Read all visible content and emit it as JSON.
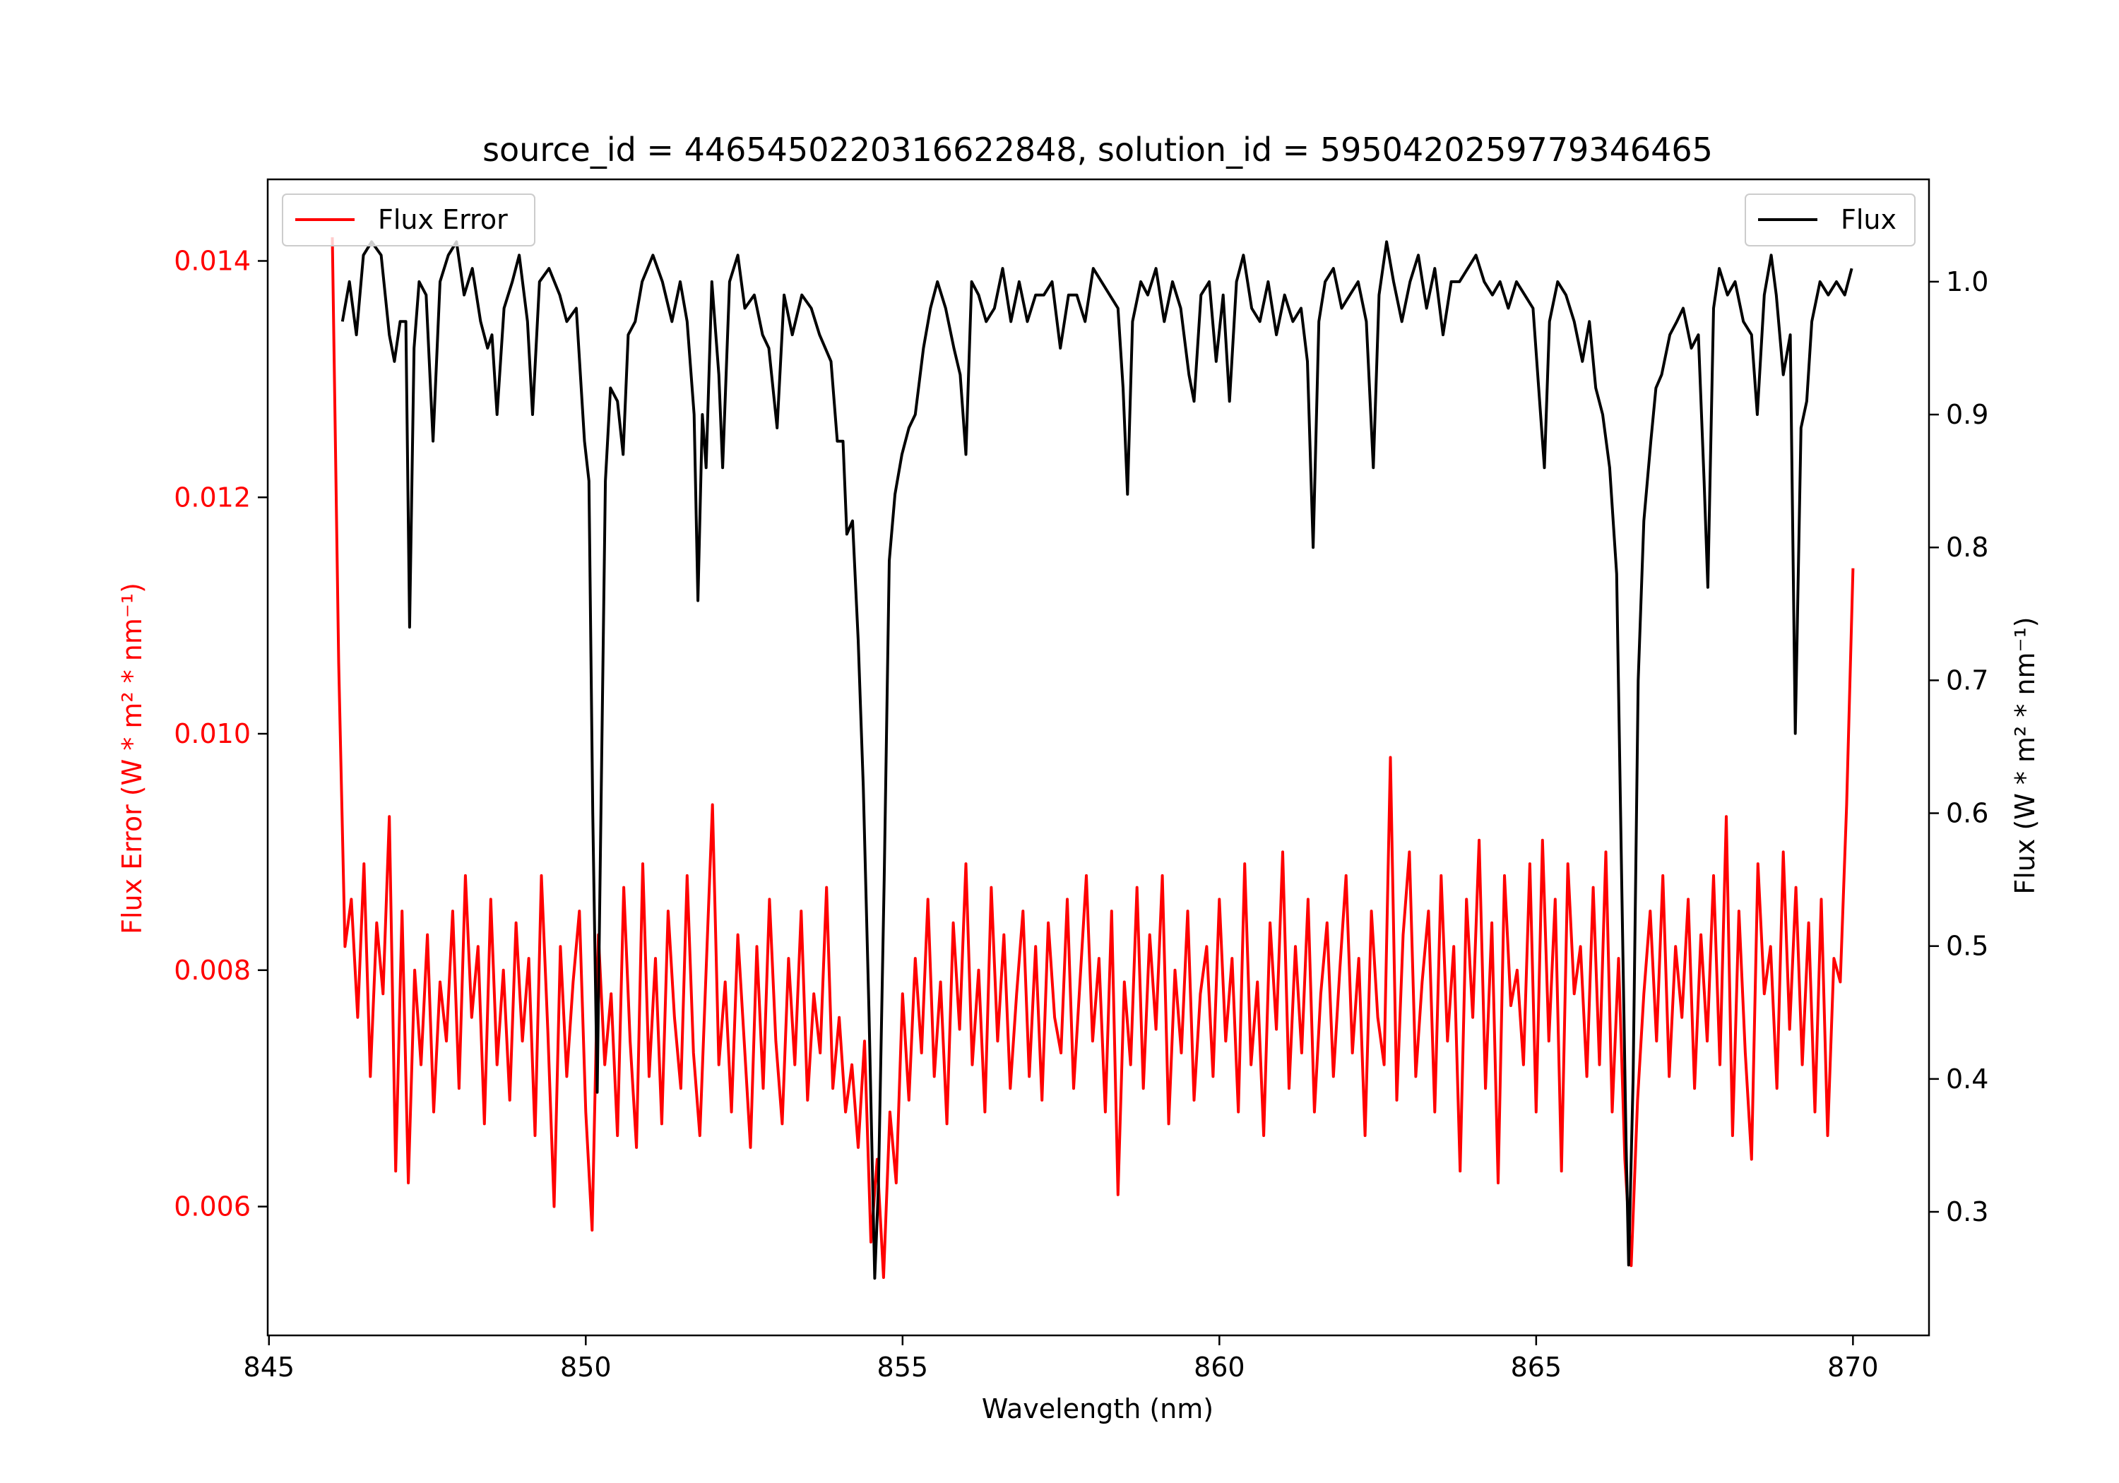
{
  "chart_data": {
    "type": "line",
    "title": "source_id = 4465450220316622848, solution_id = 5950420259779346465",
    "xlabel": "Wavelength (nm)",
    "ylabel_left": "Flux Error (W * m² * nm⁻¹)",
    "ylabel_right": "Flux (W * m² * nm⁻¹)",
    "xlim": [
      844.98,
      871.2
    ],
    "ylim_left": [
      0.00491,
      0.01469
    ],
    "ylim_right": [
      0.207,
      1.077
    ],
    "xticks": [
      845,
      850,
      855,
      860,
      865,
      870
    ],
    "xtick_labels": [
      "845",
      "850",
      "855",
      "860",
      "865",
      "870"
    ],
    "yticks_left": [
      0.006,
      0.008,
      0.01,
      0.012,
      0.014
    ],
    "ytick_labels_left": [
      "0.006",
      "0.008",
      "0.010",
      "0.012",
      "0.014"
    ],
    "yticks_right": [
      0.3,
      0.4,
      0.5,
      0.6,
      0.7,
      0.8,
      0.9,
      1.0
    ],
    "ytick_labels_right": [
      "0.3",
      "0.4",
      "0.5",
      "0.6",
      "0.7",
      "0.8",
      "0.9",
      "1.0"
    ],
    "grid": false,
    "left_axis_color": "#ff0000",
    "series": [
      {
        "name": "Flux Error",
        "axis": "left",
        "color": "#ff0000",
        "legend_position": "top-left",
        "x_start": 846.0,
        "x_step": 0.1,
        "values": [
          0.0142,
          0.0106,
          0.0082,
          0.0086,
          0.0076,
          0.0089,
          0.0071,
          0.0084,
          0.0078,
          0.0093,
          0.0063,
          0.0085,
          0.0062,
          0.008,
          0.0072,
          0.0083,
          0.0068,
          0.0079,
          0.0074,
          0.0085,
          0.007,
          0.0088,
          0.0076,
          0.0082,
          0.0067,
          0.0086,
          0.0072,
          0.008,
          0.0069,
          0.0084,
          0.0074,
          0.0081,
          0.0066,
          0.0088,
          0.0075,
          0.006,
          0.0082,
          0.0071,
          0.0079,
          0.0085,
          0.0068,
          0.0058,
          0.0083,
          0.0072,
          0.0078,
          0.0066,
          0.0087,
          0.0074,
          0.0065,
          0.0089,
          0.0071,
          0.0081,
          0.0067,
          0.0085,
          0.0076,
          0.007,
          0.0088,
          0.0073,
          0.0066,
          0.008,
          0.0094,
          0.0072,
          0.0079,
          0.0068,
          0.0083,
          0.0074,
          0.0065,
          0.0082,
          0.007,
          0.0086,
          0.0074,
          0.0067,
          0.0081,
          0.0072,
          0.0085,
          0.0069,
          0.0078,
          0.0073,
          0.0087,
          0.007,
          0.0076,
          0.0068,
          0.0072,
          0.0065,
          0.0074,
          0.0057,
          0.0064,
          0.0054,
          0.0068,
          0.0062,
          0.0078,
          0.0069,
          0.0081,
          0.0073,
          0.0086,
          0.0071,
          0.0079,
          0.0067,
          0.0084,
          0.0075,
          0.0089,
          0.0072,
          0.008,
          0.0068,
          0.0087,
          0.0074,
          0.0083,
          0.007,
          0.0078,
          0.0085,
          0.0071,
          0.0082,
          0.0069,
          0.0084,
          0.0076,
          0.0073,
          0.0086,
          0.007,
          0.0079,
          0.0088,
          0.0074,
          0.0081,
          0.0068,
          0.0085,
          0.0061,
          0.0079,
          0.0072,
          0.0087,
          0.007,
          0.0083,
          0.0075,
          0.0088,
          0.0067,
          0.008,
          0.0073,
          0.0085,
          0.0069,
          0.0078,
          0.0082,
          0.0071,
          0.0086,
          0.0074,
          0.0081,
          0.0068,
          0.0089,
          0.0072,
          0.0079,
          0.0066,
          0.0084,
          0.0075,
          0.009,
          0.007,
          0.0082,
          0.0073,
          0.0086,
          0.0068,
          0.0078,
          0.0084,
          0.0071,
          0.008,
          0.0088,
          0.0073,
          0.0081,
          0.0066,
          0.0085,
          0.0076,
          0.0072,
          0.0098,
          0.0069,
          0.0083,
          0.009,
          0.0071,
          0.0079,
          0.0085,
          0.0068,
          0.0088,
          0.0074,
          0.0082,
          0.0063,
          0.0086,
          0.0076,
          0.0091,
          0.007,
          0.0084,
          0.0062,
          0.0088,
          0.0077,
          0.008,
          0.0072,
          0.0089,
          0.0068,
          0.0091,
          0.0074,
          0.0086,
          0.0063,
          0.0089,
          0.0078,
          0.0082,
          0.0071,
          0.0087,
          0.0072,
          0.009,
          0.0068,
          0.0081,
          0.0064,
          0.0055,
          0.0069,
          0.0078,
          0.0085,
          0.0074,
          0.0088,
          0.0071,
          0.0082,
          0.0076,
          0.0086,
          0.007,
          0.0083,
          0.0074,
          0.0088,
          0.0072,
          0.0093,
          0.0066,
          0.0085,
          0.0073,
          0.0064,
          0.0089,
          0.0078,
          0.0082,
          0.007,
          0.009,
          0.0075,
          0.0087,
          0.0072,
          0.0084,
          0.0068,
          0.0086,
          0.0066,
          0.0081,
          0.0079,
          0.0094,
          0.0114
        ]
      },
      {
        "name": "Flux",
        "axis": "right",
        "color": "#000000",
        "legend_position": "top-right",
        "points": [
          [
            846.16,
            0.97
          ],
          [
            846.27,
            1.0
          ],
          [
            846.38,
            0.96
          ],
          [
            846.49,
            1.02
          ],
          [
            846.62,
            1.03
          ],
          [
            846.77,
            1.02
          ],
          [
            846.9,
            0.96
          ],
          [
            846.98,
            0.94
          ],
          [
            847.07,
            0.97
          ],
          [
            847.16,
            0.97
          ],
          [
            847.22,
            0.74
          ],
          [
            847.29,
            0.95
          ],
          [
            847.37,
            1.0
          ],
          [
            847.48,
            0.99
          ],
          [
            847.59,
            0.88
          ],
          [
            847.7,
            1.0
          ],
          [
            847.83,
            1.02
          ],
          [
            847.96,
            1.03
          ],
          [
            848.08,
            0.99
          ],
          [
            848.21,
            1.01
          ],
          [
            848.34,
            0.97
          ],
          [
            848.45,
            0.95
          ],
          [
            848.52,
            0.96
          ],
          [
            848.6,
            0.9
          ],
          [
            848.71,
            0.98
          ],
          [
            848.84,
            1.0
          ],
          [
            848.95,
            1.02
          ],
          [
            849.08,
            0.97
          ],
          [
            849.16,
            0.9
          ],
          [
            849.27,
            1.0
          ],
          [
            849.42,
            1.01
          ],
          [
            849.59,
            0.99
          ],
          [
            849.7,
            0.97
          ],
          [
            849.85,
            0.98
          ],
          [
            849.98,
            0.88
          ],
          [
            850.05,
            0.85
          ],
          [
            850.11,
            0.6
          ],
          [
            850.18,
            0.39
          ],
          [
            850.24,
            0.6
          ],
          [
            850.31,
            0.85
          ],
          [
            850.39,
            0.92
          ],
          [
            850.5,
            0.91
          ],
          [
            850.59,
            0.87
          ],
          [
            850.67,
            0.96
          ],
          [
            850.78,
            0.97
          ],
          [
            850.89,
            1.0
          ],
          [
            851.06,
            1.02
          ],
          [
            851.21,
            1.0
          ],
          [
            851.36,
            0.97
          ],
          [
            851.49,
            1.0
          ],
          [
            851.6,
            0.97
          ],
          [
            851.71,
            0.9
          ],
          [
            851.77,
            0.76
          ],
          [
            851.84,
            0.9
          ],
          [
            851.9,
            0.86
          ],
          [
            851.99,
            1.0
          ],
          [
            852.1,
            0.93
          ],
          [
            852.16,
            0.86
          ],
          [
            852.27,
            1.0
          ],
          [
            852.4,
            1.02
          ],
          [
            852.51,
            0.98
          ],
          [
            852.66,
            0.99
          ],
          [
            852.79,
            0.96
          ],
          [
            852.89,
            0.95
          ],
          [
            853.02,
            0.89
          ],
          [
            853.13,
            0.99
          ],
          [
            853.26,
            0.96
          ],
          [
            853.41,
            0.99
          ],
          [
            853.56,
            0.98
          ],
          [
            853.69,
            0.96
          ],
          [
            853.87,
            0.94
          ],
          [
            853.97,
            0.88
          ],
          [
            854.06,
            0.88
          ],
          [
            854.12,
            0.81
          ],
          [
            854.21,
            0.82
          ],
          [
            854.3,
            0.73
          ],
          [
            854.38,
            0.62
          ],
          [
            854.47,
            0.45
          ],
          [
            854.56,
            0.25
          ],
          [
            854.62,
            0.32
          ],
          [
            854.71,
            0.55
          ],
          [
            854.79,
            0.79
          ],
          [
            854.88,
            0.84
          ],
          [
            854.99,
            0.87
          ],
          [
            855.1,
            0.89
          ],
          [
            855.2,
            0.9
          ],
          [
            855.33,
            0.95
          ],
          [
            855.44,
            0.98
          ],
          [
            855.55,
            1.0
          ],
          [
            855.68,
            0.98
          ],
          [
            855.81,
            0.95
          ],
          [
            855.91,
            0.93
          ],
          [
            856.0,
            0.87
          ],
          [
            856.09,
            1.0
          ],
          [
            856.2,
            0.99
          ],
          [
            856.32,
            0.97
          ],
          [
            856.45,
            0.98
          ],
          [
            856.58,
            1.01
          ],
          [
            856.71,
            0.97
          ],
          [
            856.84,
            1.0
          ],
          [
            856.97,
            0.97
          ],
          [
            857.1,
            0.99
          ],
          [
            857.23,
            0.99
          ],
          [
            857.36,
            1.0
          ],
          [
            857.49,
            0.95
          ],
          [
            857.62,
            0.99
          ],
          [
            857.75,
            0.99
          ],
          [
            857.88,
            0.97
          ],
          [
            858.01,
            1.01
          ],
          [
            858.14,
            1.0
          ],
          [
            858.27,
            0.99
          ],
          [
            858.4,
            0.98
          ],
          [
            858.48,
            0.92
          ],
          [
            858.55,
            0.84
          ],
          [
            858.63,
            0.97
          ],
          [
            858.76,
            1.0
          ],
          [
            858.87,
            0.99
          ],
          [
            859.0,
            1.01
          ],
          [
            859.13,
            0.97
          ],
          [
            859.26,
            1.0
          ],
          [
            859.39,
            0.98
          ],
          [
            859.52,
            0.93
          ],
          [
            859.6,
            0.91
          ],
          [
            859.71,
            0.99
          ],
          [
            859.84,
            1.0
          ],
          [
            859.95,
            0.94
          ],
          [
            860.06,
            0.99
          ],
          [
            860.16,
            0.91
          ],
          [
            860.27,
            1.0
          ],
          [
            860.38,
            1.02
          ],
          [
            860.51,
            0.98
          ],
          [
            860.64,
            0.97
          ],
          [
            860.77,
            1.0
          ],
          [
            860.9,
            0.96
          ],
          [
            861.03,
            0.99
          ],
          [
            861.16,
            0.97
          ],
          [
            861.29,
            0.98
          ],
          [
            861.39,
            0.94
          ],
          [
            861.48,
            0.8
          ],
          [
            861.57,
            0.97
          ],
          [
            861.67,
            1.0
          ],
          [
            861.8,
            1.01
          ],
          [
            861.93,
            0.98
          ],
          [
            862.06,
            0.99
          ],
          [
            862.19,
            1.0
          ],
          [
            862.32,
            0.97
          ],
          [
            862.43,
            0.86
          ],
          [
            862.52,
            0.99
          ],
          [
            862.64,
            1.03
          ],
          [
            862.75,
            1.0
          ],
          [
            862.88,
            0.97
          ],
          [
            863.01,
            1.0
          ],
          [
            863.14,
            1.02
          ],
          [
            863.27,
            0.98
          ],
          [
            863.4,
            1.01
          ],
          [
            863.53,
            0.96
          ],
          [
            863.66,
            1.0
          ],
          [
            863.79,
            1.0
          ],
          [
            863.92,
            1.01
          ],
          [
            864.05,
            1.02
          ],
          [
            864.18,
            1.0
          ],
          [
            864.31,
            0.99
          ],
          [
            864.43,
            1.0
          ],
          [
            864.56,
            0.98
          ],
          [
            864.69,
            1.0
          ],
          [
            864.82,
            0.99
          ],
          [
            864.95,
            0.98
          ],
          [
            865.04,
            0.92
          ],
          [
            865.13,
            0.86
          ],
          [
            865.21,
            0.97
          ],
          [
            865.34,
            1.0
          ],
          [
            865.47,
            0.99
          ],
          [
            865.6,
            0.97
          ],
          [
            865.73,
            0.94
          ],
          [
            865.84,
            0.97
          ],
          [
            865.94,
            0.92
          ],
          [
            866.05,
            0.9
          ],
          [
            866.16,
            0.86
          ],
          [
            866.27,
            0.78
          ],
          [
            866.35,
            0.55
          ],
          [
            866.42,
            0.35
          ],
          [
            866.46,
            0.26
          ],
          [
            866.53,
            0.4
          ],
          [
            866.61,
            0.7
          ],
          [
            866.7,
            0.82
          ],
          [
            866.81,
            0.88
          ],
          [
            866.89,
            0.92
          ],
          [
            866.98,
            0.93
          ],
          [
            867.11,
            0.96
          ],
          [
            867.22,
            0.97
          ],
          [
            867.32,
            0.98
          ],
          [
            867.45,
            0.95
          ],
          [
            867.56,
            0.96
          ],
          [
            867.65,
            0.85
          ],
          [
            867.71,
            0.77
          ],
          [
            867.8,
            0.98
          ],
          [
            867.89,
            1.01
          ],
          [
            868.02,
            0.99
          ],
          [
            868.14,
            1.0
          ],
          [
            868.27,
            0.97
          ],
          [
            868.4,
            0.96
          ],
          [
            868.49,
            0.9
          ],
          [
            868.6,
            0.99
          ],
          [
            868.71,
            1.02
          ],
          [
            868.79,
            0.99
          ],
          [
            868.9,
            0.93
          ],
          [
            869.01,
            0.96
          ],
          [
            869.09,
            0.66
          ],
          [
            869.18,
            0.89
          ],
          [
            869.27,
            0.91
          ],
          [
            869.35,
            0.97
          ],
          [
            869.48,
            1.0
          ],
          [
            869.61,
            0.99
          ],
          [
            869.74,
            1.0
          ],
          [
            869.87,
            0.99
          ],
          [
            869.98,
            1.01
          ]
        ]
      }
    ]
  }
}
